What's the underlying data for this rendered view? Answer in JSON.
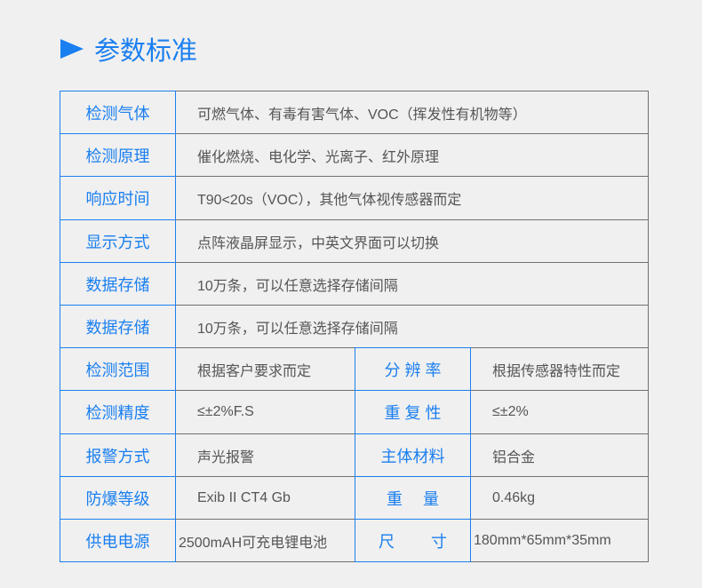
{
  "title": "参数标准",
  "accent_color": "#1a7ff0",
  "rows": [
    {
      "label": "检测气体",
      "value": "可燃气体、有毒有害气体、VOC（挥发性有机物等）"
    },
    {
      "label": "检测原理",
      "value": "催化燃烧、电化学、光离子、红外原理"
    },
    {
      "label": "响应时间",
      "value": "T90<20s（VOC），其他气体视传感器而定"
    },
    {
      "label": "显示方式",
      "value": "点阵液晶屏显示，中英文界面可以切换"
    },
    {
      "label": "数据存储",
      "value": "10万条，可以任意选择存储间隔"
    },
    {
      "label": "数据存储",
      "value": "10万条，可以任意选择存储间隔"
    },
    {
      "label": "检测范围",
      "value": "根据客户要求而定",
      "label2": "分 辨 率",
      "value2": "根据传感器特性而定"
    },
    {
      "label": "检测精度",
      "value": "≤±2%F.S",
      "label2": "重 复 性",
      "value2": "≤±2%"
    },
    {
      "label": "报警方式",
      "value": "声光报警",
      "label2": "主体材料",
      "value2": "铝合金"
    },
    {
      "label": "防爆等级",
      "value": "Exib II CT4 Gb",
      "label2": "重　 量",
      "value2": "0.46kg"
    },
    {
      "label": "供电电源",
      "value": "2500mAH可充电锂电池",
      "label2": "尺　　 寸",
      "value2": "180mm*65mm*35mm"
    }
  ]
}
